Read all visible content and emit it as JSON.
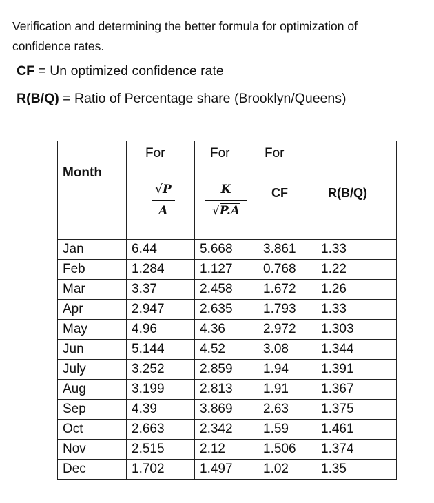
{
  "intro": "Verification and determining the better formula for optimization of confidence rates.",
  "definitions": [
    {
      "term": "CF",
      "desc": " = Un optimized confidence rate"
    },
    {
      "term": "R(B/Q)",
      "desc": " = Ratio of Percentage share (Brooklyn/Queens)"
    }
  ],
  "table": {
    "header": {
      "month": "Month",
      "for2": "For",
      "for3": "For",
      "for4": "For",
      "formula1_num": "P",
      "formula1_den": "A",
      "formula2_num": "K",
      "formula2_den": "P.A",
      "cf": "CF",
      "rbq": "R(B/Q)"
    },
    "rows": [
      {
        "month": "Jan",
        "a": "6.44",
        "b": "5.668",
        "cf": "3.861",
        "r": "1.33"
      },
      {
        "month": "Feb",
        "a": "1.284",
        "b": "1.127",
        "cf": "0.768",
        "r": "1.22"
      },
      {
        "month": "Mar",
        "a": "3.37",
        "b": "2.458",
        "cf": "1.672",
        "r": "1.26"
      },
      {
        "month": "Apr",
        "a": "2.947",
        "b": "2.635",
        "cf": "1.793",
        "r": "1.33"
      },
      {
        "month": "May",
        "a": "4.96",
        "b": "4.36",
        "cf": "2.972",
        "r": "1.303"
      },
      {
        "month": "Jun",
        "a": "5.144",
        "b": "4.52",
        "cf": "3.08",
        "r": "1.344"
      },
      {
        "month": "July",
        "a": "3.252",
        "b": "2.859",
        "cf": "1.94",
        "r": "1.391"
      },
      {
        "month": "Aug",
        "a": "3.199",
        "b": "2.813",
        "cf": "1.91",
        "r": "1.367"
      },
      {
        "month": "Sep",
        "a": "4.39",
        "b": "3.869",
        "cf": "2.63",
        "r": "1.375"
      },
      {
        "month": "Oct",
        "a": "2.663",
        "b": "2.342",
        "cf": "1.59",
        "r": "1.461"
      },
      {
        "month": "Nov",
        "a": "2.515",
        "b": "2.12",
        "cf": "1.506",
        "r": "1.374"
      },
      {
        "month": "Dec",
        "a": "1.702",
        "b": "1.497",
        "cf": "1.02",
        "r": "1.35"
      }
    ]
  }
}
